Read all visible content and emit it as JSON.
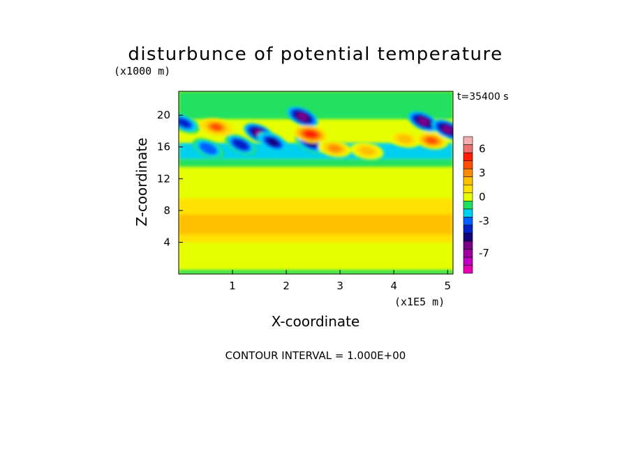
{
  "chart_data": {
    "type": "heatmap",
    "title": "disturbunce of potential temperature",
    "z_unit_label": "(x1000 m)",
    "x_unit_label": "(x1E5 m)",
    "time_label": "t=35400 s",
    "xlabel": "X-coordinate",
    "ylabel": "Z-coordinate",
    "contour_interval_label": "CONTOUR INTERVAL = 1.000E+00",
    "xlim": [
      0,
      5.1
    ],
    "ylim": [
      0,
      23
    ],
    "x_ticks": [
      "1",
      "2",
      "3",
      "4",
      "5"
    ],
    "y_ticks": [
      "4",
      "8",
      "12",
      "16",
      "20"
    ],
    "colorbar": {
      "levels": [
        -9,
        -8,
        -7,
        -6,
        -5,
        -4,
        -3,
        -2,
        -1,
        0,
        1,
        2,
        3,
        4,
        5,
        6,
        7
      ],
      "colors": [
        "#e600b4",
        "#c000c0",
        "#a000a0",
        "#7a008a",
        "#18007a",
        "#0020c8",
        "#0060ff",
        "#00d0f0",
        "#20e060",
        "#e6ff00",
        "#ffe000",
        "#ffc000",
        "#ff8c00",
        "#ff5000",
        "#ff1c00",
        "#f07070",
        "#f4b0b0"
      ],
      "tick_labels": [
        "6",
        "3",
        "0",
        "-3",
        "-7"
      ],
      "tick_values": [
        6,
        3,
        0,
        -3,
        -7
      ]
    },
    "features": [
      {
        "x": 0.7,
        "z": 18.5,
        "value": 5.5
      },
      {
        "x": 1.15,
        "z": 16.3,
        "value": -4.5
      },
      {
        "x": 0.55,
        "z": 15.8,
        "value": -3.5
      },
      {
        "x": 0.1,
        "z": 19.0,
        "value": -4.0
      },
      {
        "x": 1.5,
        "z": 17.7,
        "value": -6.5
      },
      {
        "x": 1.75,
        "z": 16.6,
        "value": -5.5
      },
      {
        "x": 2.3,
        "z": 19.8,
        "value": -6.5
      },
      {
        "x": 2.45,
        "z": 16.5,
        "value": -5.0
      },
      {
        "x": 2.45,
        "z": 17.6,
        "value": 6.0
      },
      {
        "x": 2.9,
        "z": 15.8,
        "value": 4.0
      },
      {
        "x": 3.5,
        "z": 15.5,
        "value": 3.0
      },
      {
        "x": 4.2,
        "z": 17.0,
        "value": 3.0
      },
      {
        "x": 4.55,
        "z": 19.2,
        "value": -6.0
      },
      {
        "x": 4.7,
        "z": 16.8,
        "value": 5.0
      },
      {
        "x": 5.0,
        "z": 18.2,
        "value": -6.5
      }
    ]
  }
}
